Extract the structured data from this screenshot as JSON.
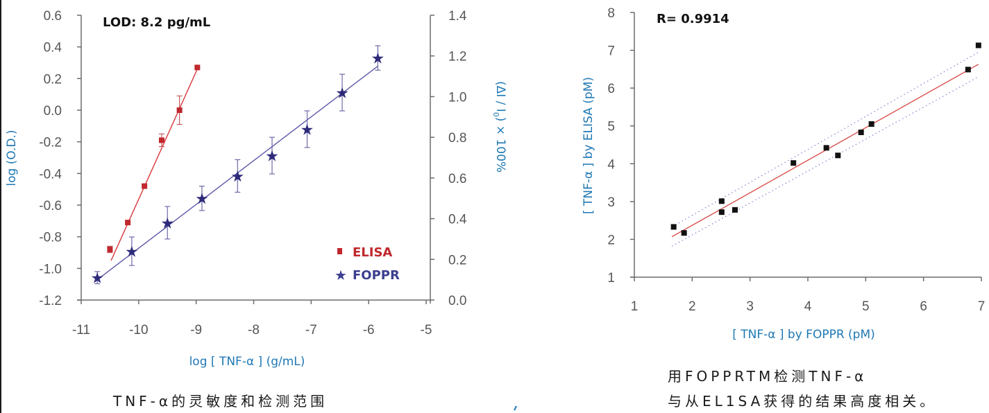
{
  "captions": {
    "left": "TNF-α的灵敏度和检测范围",
    "right_line1": "用FOPPRTM检测TNF-α",
    "right_line2": "与从EL1SA获得的结果高度相关。"
  },
  "colors": {
    "elisa": "#c0282d",
    "foppr": "#2e2a7a",
    "fit_red": "#d9534f",
    "ci_blue": "#7b7fd1",
    "axis": "#6b6b6b",
    "axis_title": "#1f78b4",
    "points_black": "#111111"
  },
  "chart_data": [
    {
      "id": "sensitivity",
      "type": "scatter",
      "title": "",
      "annotation": "LOD: 8.2 pg/mL",
      "xlabel": "log [ TNF-α ] (g/mL)",
      "ylabel_left": "log (O.D.)",
      "ylabel_right": "(ΔI / I0) × 100%",
      "xlim": [
        -11,
        -5
      ],
      "ylim_left": [
        -1.2,
        0.6
      ],
      "ylim_right": [
        0.0,
        1.4
      ],
      "x_ticks": [
        "-11",
        "-10",
        "-9",
        "-8",
        "-7",
        "-6",
        "-5"
      ],
      "y_ticks_left": [
        "0.6",
        "0.4",
        "0.2",
        "0.0",
        "-0.2",
        "-0.4",
        "-0.6",
        "-0.8",
        "-1.0",
        "-1.2"
      ],
      "y_ticks_right": [
        "1.4",
        "1.2",
        "1.0",
        "0.8",
        "0.6",
        "0.4",
        "0.2",
        "0.0"
      ],
      "grid": false,
      "legend_position": "lower right",
      "legend": [
        {
          "label": "ELISA",
          "marker": "square"
        },
        {
          "label": "FOPPR",
          "marker": "star"
        }
      ],
      "series": [
        {
          "name": "ELISA",
          "axis": "left",
          "marker": "square",
          "x": [
            -10.5,
            -10.19,
            -9.9,
            -9.6,
            -9.29,
            -8.98
          ],
          "y": [
            -0.88,
            -0.71,
            -0.48,
            -0.19,
            0.0,
            0.27
          ],
          "err": [
            0.02,
            0.0,
            0.0,
            0.04,
            0.09,
            0.0
          ],
          "fit": {
            "x": [
              -10.48,
              -8.98
            ],
            "y": [
              -0.95,
              0.26
            ]
          }
        },
        {
          "name": "FOPPR",
          "axis": "right",
          "marker": "star",
          "x": [
            -10.72,
            -10.12,
            -9.5,
            -8.9,
            -8.28,
            -7.68,
            -7.07,
            -6.46,
            -5.84
          ],
          "y": [
            0.11,
            0.24,
            0.38,
            0.5,
            0.61,
            0.71,
            0.84,
            1.02,
            1.19
          ],
          "err": [
            0.03,
            0.07,
            0.08,
            0.06,
            0.08,
            0.09,
            0.09,
            0.09,
            0.06
          ],
          "fit": {
            "x": [
              -10.72,
              -5.84
            ],
            "y": [
              0.1,
              1.15
            ]
          }
        }
      ]
    },
    {
      "id": "correlation",
      "type": "scatter",
      "title": "",
      "annotation": "R= 0.9914",
      "xlabel": "[ TNF-α ] by FOPPR (pM)",
      "ylabel": "[ TNF-α ] by ELISA (pM)",
      "xlim": [
        1,
        7
      ],
      "ylim": [
        1,
        8
      ],
      "x_ticks": [
        "1",
        "2",
        "3",
        "4",
        "5",
        "6",
        "7"
      ],
      "y_ticks": [
        "8",
        "7",
        "6",
        "5",
        "4",
        "3",
        "2",
        "1"
      ],
      "grid": false,
      "series": [
        {
          "name": "samples",
          "marker": "square",
          "x": [
            1.68,
            1.86,
            2.51,
            2.51,
            2.74,
            3.75,
            4.32,
            4.52,
            4.92,
            5.1,
            6.77,
            6.95
          ],
          "y": [
            2.33,
            2.17,
            3.01,
            2.72,
            2.78,
            4.02,
            4.42,
            4.22,
            4.83,
            5.05,
            6.49,
            7.13
          ]
        }
      ],
      "fit_line": {
        "x": [
          1.65,
          6.95
        ],
        "y": [
          2.07,
          6.63
        ]
      },
      "confidence_upper": {
        "x": [
          1.65,
          6.95
        ],
        "y": [
          2.33,
          6.95
        ]
      },
      "confidence_lower": {
        "x": [
          1.65,
          6.95
        ],
        "y": [
          1.82,
          6.3
        ]
      }
    }
  ]
}
